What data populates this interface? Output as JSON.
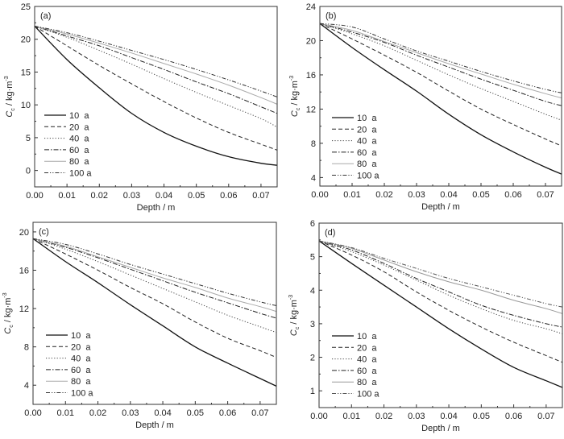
{
  "chart_data": [
    {
      "type": "line",
      "panel_label": "(a)",
      "xlabel": "Depth / m",
      "ylabel_main": "C",
      "ylabel_sub": "c",
      "ylabel_unit": " / kg·m",
      "ylabel_sup": "-3",
      "xlim": [
        0,
        0.075
      ],
      "ylim": [
        -2.5,
        25
      ],
      "xticks": [
        0,
        0.01,
        0.02,
        0.03,
        0.04,
        0.05,
        0.06,
        0.07
      ],
      "xtick_labels": [
        "0.00",
        "0.01",
        "0.02",
        "0.03",
        "0.04",
        "0.05",
        "0.06",
        "0.07"
      ],
      "yticks": [
        0,
        5,
        10,
        15,
        20,
        25
      ],
      "ytick_labels": [
        "0",
        "5",
        "10",
        "15",
        "20",
        "25"
      ],
      "legend": "bottom-left",
      "grid": false,
      "x": [
        0,
        0.01,
        0.02,
        0.03,
        0.04,
        0.05,
        0.06,
        0.07,
        0.075
      ],
      "series": [
        {
          "name": "10  a",
          "style": "solid",
          "color": "#111111",
          "values": [
            22,
            16.9,
            12.6,
            8.7,
            5.8,
            3.7,
            2.1,
            1.1,
            0.8
          ]
        },
        {
          "name": "20  a",
          "style": "dashed",
          "color": "#222222",
          "values": [
            22,
            19,
            16,
            13.2,
            10.5,
            8,
            5.8,
            4,
            3.1
          ]
        },
        {
          "name": "40  a",
          "style": "dotted",
          "color": "#444444",
          "values": [
            22,
            20.3,
            18.3,
            16.2,
            14,
            11.9,
            9.9,
            7.9,
            6.6
          ]
        },
        {
          "name": "60  a",
          "style": "dash-dot",
          "color": "#222222",
          "values": [
            22,
            20.5,
            19,
            17.2,
            15.4,
            13.5,
            11.7,
            9.7,
            8.7
          ]
        },
        {
          "name": "80  a",
          "style": "solid-light",
          "color": "#aaaaaa",
          "values": [
            22,
            20.8,
            19.4,
            17.9,
            16.3,
            14.7,
            13,
            11.1,
            10.1
          ]
        },
        {
          "name": "100 a",
          "style": "dash-dot-dot",
          "color": "#333333",
          "values": [
            22,
            21,
            19.7,
            18.3,
            16.9,
            15.4,
            13.8,
            12.1,
            11.2
          ]
        }
      ]
    },
    {
      "type": "line",
      "panel_label": "(b)",
      "xlabel": "Depth / m",
      "ylabel_main": "C",
      "ylabel_sub": "c",
      "ylabel_unit": " / kg·m",
      "ylabel_sup": "-3",
      "xlim": [
        0,
        0.075
      ],
      "ylim": [
        3,
        24
      ],
      "xticks": [
        0,
        0.01,
        0.02,
        0.03,
        0.04,
        0.05,
        0.06,
        0.07
      ],
      "xtick_labels": [
        "0.00",
        "0.01",
        "0.02",
        "0.03",
        "0.04",
        "0.05",
        "0.06",
        "0.07"
      ],
      "yticks": [
        4,
        8,
        12,
        16,
        20,
        24
      ],
      "ytick_labels": [
        "4",
        "8",
        "12",
        "16",
        "20",
        "24"
      ],
      "legend": "bottom-left",
      "grid": false,
      "x": [
        0,
        0.01,
        0.02,
        0.03,
        0.04,
        0.05,
        0.06,
        0.07,
        0.075
      ],
      "series": [
        {
          "name": "10  a",
          "style": "solid",
          "color": "#111111",
          "values": [
            22,
            19.2,
            16.6,
            14.1,
            11.4,
            9,
            7,
            5.2,
            4.4
          ]
        },
        {
          "name": "20  a",
          "style": "dashed",
          "color": "#222222",
          "values": [
            22,
            20.2,
            18.3,
            16.3,
            14.1,
            12,
            10.2,
            8.5,
            7.7
          ]
        },
        {
          "name": "40  a",
          "style": "dotted",
          "color": "#444444",
          "values": [
            22,
            20.8,
            19.4,
            17.7,
            16,
            14.4,
            12.9,
            11.4,
            10.7
          ]
        },
        {
          "name": "60  a",
          "style": "dash-dot",
          "color": "#222222",
          "values": [
            22,
            21,
            19.8,
            18.3,
            16.9,
            15.5,
            14.2,
            12.9,
            12.4
          ]
        },
        {
          "name": "80  a",
          "style": "solid-light",
          "color": "#aaaaaa",
          "values": [
            22,
            21.2,
            19.9,
            18.6,
            17.3,
            16.1,
            14.9,
            13.8,
            13.3
          ]
        },
        {
          "name": "100 a",
          "style": "dash-dot-dot",
          "color": "#333333",
          "values": [
            22,
            21.6,
            20.2,
            18.8,
            17.6,
            16.4,
            15.3,
            14.3,
            13.9
          ]
        }
      ]
    },
    {
      "type": "line",
      "panel_label": "(c)",
      "xlabel": "Depth / m",
      "ylabel_main": "C",
      "ylabel_sub": "c",
      "ylabel_unit": " / kg·m",
      "ylabel_sup": "-3",
      "xlim": [
        0,
        0.075
      ],
      "ylim": [
        2,
        21
      ],
      "xticks": [
        0,
        0.01,
        0.02,
        0.03,
        0.04,
        0.05,
        0.06,
        0.07
      ],
      "xtick_labels": [
        "0.00",
        "0.01",
        "0.02",
        "0.03",
        "0.04",
        "0.05",
        "0.06",
        "0.07"
      ],
      "yticks": [
        4,
        8,
        12,
        16,
        20
      ],
      "ytick_labels": [
        "4",
        "8",
        "12",
        "16",
        "20"
      ],
      "legend": "bottom-left",
      "grid": false,
      "x": [
        0,
        0.01,
        0.02,
        0.03,
        0.04,
        0.05,
        0.06,
        0.07,
        0.075
      ],
      "series": [
        {
          "name": "10  a",
          "style": "solid",
          "color": "#111111",
          "values": [
            19.3,
            16.9,
            14.7,
            12.4,
            10.2,
            8,
            6.3,
            4.7,
            3.9
          ]
        },
        {
          "name": "20  a",
          "style": "dashed",
          "color": "#222222",
          "values": [
            19.3,
            17.7,
            16,
            14.2,
            12.5,
            10.6,
            8.9,
            7.6,
            6.9
          ]
        },
        {
          "name": "40  a",
          "style": "dotted",
          "color": "#444444",
          "values": [
            19.3,
            18.2,
            16.9,
            15.5,
            14.1,
            12.7,
            11.3,
            10.1,
            9.5
          ]
        },
        {
          "name": "60  a",
          "style": "dash-dot",
          "color": "#222222",
          "values": [
            19.3,
            18.4,
            17.3,
            16.1,
            14.9,
            13.7,
            12.6,
            11.5,
            11
          ]
        },
        {
          "name": "80  a",
          "style": "solid-light",
          "color": "#aaaaaa",
          "values": [
            19.3,
            18.5,
            17.4,
            16.3,
            15.2,
            14.2,
            13.1,
            12.2,
            11.7
          ]
        },
        {
          "name": "100 a",
          "style": "dash-dot-dot",
          "color": "#333333",
          "values": [
            19.3,
            18.7,
            17.7,
            16.6,
            15.6,
            14.6,
            13.6,
            12.7,
            12.3
          ]
        }
      ]
    },
    {
      "type": "line",
      "panel_label": "(d)",
      "xlabel": "Depth / m",
      "ylabel_main": "C",
      "ylabel_sub": "c",
      "ylabel_unit": " / kg·m",
      "ylabel_sup": "-3",
      "xlim": [
        0,
        0.075
      ],
      "ylim": [
        0.5,
        6
      ],
      "xticks": [
        0,
        0.01,
        0.02,
        0.03,
        0.04,
        0.05,
        0.06,
        0.07
      ],
      "xtick_labels": [
        "0.00",
        "0.01",
        "0.02",
        "0.03",
        "0.04",
        "0.05",
        "0.06",
        "0.07"
      ],
      "yticks": [
        1,
        2,
        3,
        4,
        5,
        6
      ],
      "ytick_labels": [
        "1",
        "2",
        "3",
        "4",
        "5",
        "6"
      ],
      "legend": "bottom-left",
      "grid": false,
      "x": [
        0,
        0.01,
        0.02,
        0.03,
        0.04,
        0.05,
        0.06,
        0.07,
        0.075
      ],
      "series": [
        {
          "name": "10  a",
          "style": "solid",
          "color": "#111111",
          "values": [
            5.47,
            4.8,
            4.15,
            3.5,
            2.85,
            2.25,
            1.7,
            1.3,
            1.1
          ]
        },
        {
          "name": "20  a",
          "style": "dashed",
          "color": "#222222",
          "values": [
            5.47,
            5.05,
            4.55,
            3.95,
            3.4,
            2.9,
            2.45,
            2.05,
            1.85
          ]
        },
        {
          "name": "40  a",
          "style": "dotted",
          "color": "#444444",
          "values": [
            5.47,
            5.15,
            4.75,
            4.3,
            3.85,
            3.45,
            3.1,
            2.85,
            2.7
          ]
        },
        {
          "name": "60  a",
          "style": "dash-dot",
          "color": "#222222",
          "values": [
            5.47,
            5.2,
            4.8,
            4.35,
            3.95,
            3.55,
            3.25,
            3.0,
            2.9
          ]
        },
        {
          "name": "80  a",
          "style": "solid-light",
          "color": "#999999",
          "values": [
            5.47,
            5.25,
            4.9,
            4.55,
            4.25,
            4.0,
            3.7,
            3.45,
            3.3
          ]
        },
        {
          "name": "100 a",
          "style": "dash-dot-dot",
          "color": "#555555",
          "values": [
            5.47,
            5.27,
            4.95,
            4.65,
            4.35,
            4.1,
            3.85,
            3.6,
            3.5
          ]
        }
      ]
    }
  ]
}
